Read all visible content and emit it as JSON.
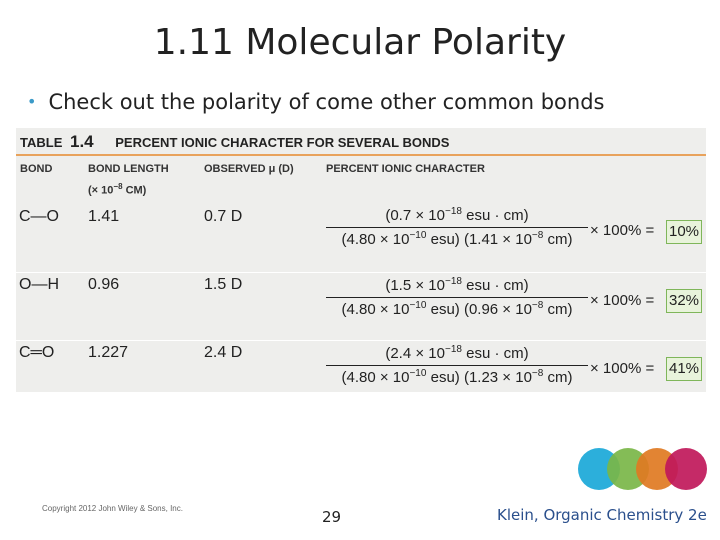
{
  "title": "1.11 Molecular Polarity",
  "bullet": "Check out the polarity of come other common bonds",
  "table": {
    "label": "TABLE",
    "number": "1.4",
    "heading": "PERCENT IONIC CHARACTER FOR SEVERAL BONDS",
    "columns": {
      "bond": "BOND",
      "length_line1": "BOND LENGTH",
      "length_line2_a": "(× 10",
      "length_line2_exp": "−8",
      "length_line2_b": " CM)",
      "observed": "OBSERVED μ (D)",
      "percent": "PERCENT IONIC CHARACTER"
    },
    "rows": [
      {
        "bond": "C—O",
        "length": "1.41",
        "observed": "0.7 D",
        "num_a": "(0.7 × 10",
        "num_exp": "−18",
        "num_b": " esu · cm)",
        "den_a": "(4.80 × 10",
        "den_exp1": "−10",
        "den_b": " esu) (1.41 × 10",
        "den_exp2": "−8",
        "den_c": " cm)",
        "mult": "× 100% =",
        "result": "10%"
      },
      {
        "bond": "O—H",
        "length": "0.96",
        "observed": "1.5 D",
        "num_a": "(1.5 × 10",
        "num_exp": "−18",
        "num_b": " esu · cm)",
        "den_a": "(4.80 × 10",
        "den_exp1": "−10",
        "den_b": " esu) (0.96 × 10",
        "den_exp2": "−8",
        "den_c": " cm)",
        "mult": "× 100% =",
        "result": "32%"
      },
      {
        "bond": "C═O",
        "length": "1.227",
        "observed": "2.4 D",
        "num_a": "(2.4 × 10",
        "num_exp": "−18",
        "num_b": " esu · cm)",
        "den_a": "(4.80 × 10",
        "den_exp1": "−10",
        "den_b": " esu) (1.23 × 10",
        "den_exp2": "−8",
        "den_c": " cm)",
        "mult": "× 100% =",
        "result": "41%"
      }
    ]
  },
  "footer": {
    "copyright": "Copyright 2012 John Wiley & Sons, Inc.",
    "page": "29",
    "right": "Klein, Organic Chemistry 2e"
  },
  "colors": {
    "bullet": "#3b9ac8",
    "table_bg": "#eeeeec",
    "header_rule": "#e8a25c",
    "result_box": "#e8f3db",
    "logo": [
      "#1aa8d8",
      "#7ab648",
      "#e07a22",
      "#c0185a"
    ]
  }
}
